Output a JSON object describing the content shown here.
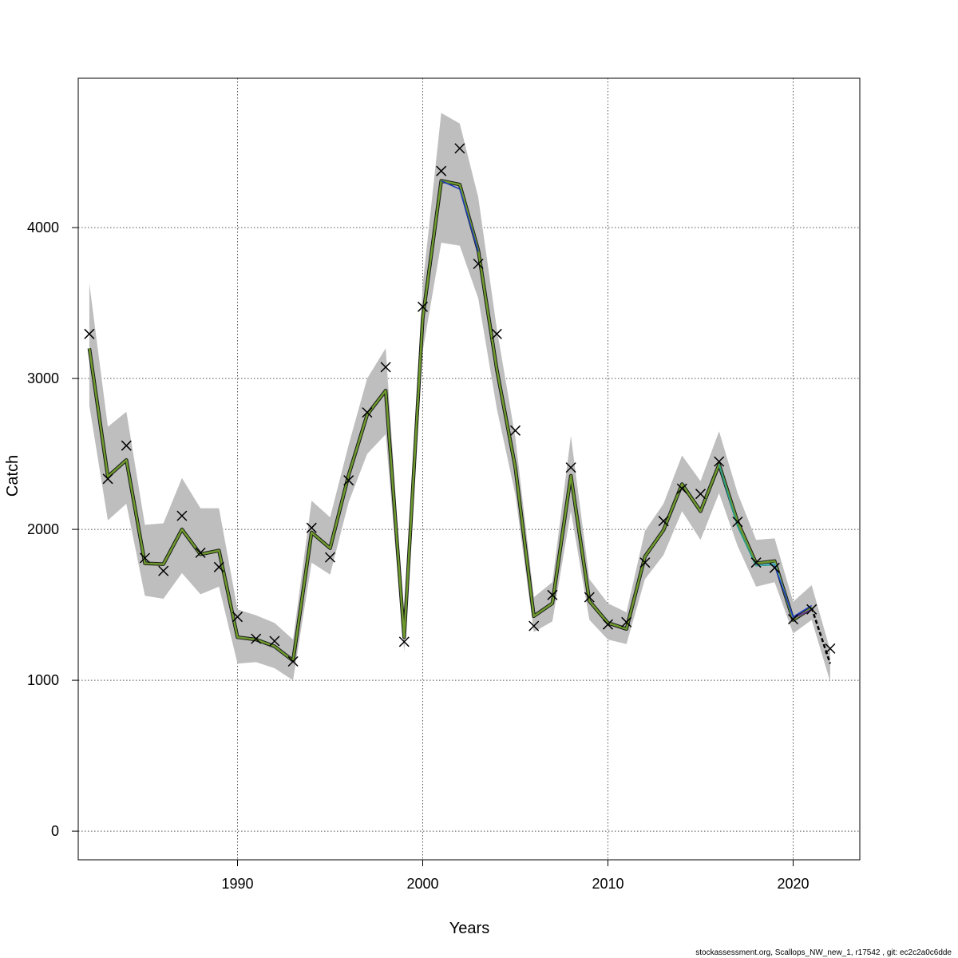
{
  "chart_data": {
    "type": "line",
    "xlabel": "Years",
    "ylabel": "Catch",
    "xlim": [
      1981.4,
      2023.6
    ],
    "ylim": [
      -190,
      4990
    ],
    "x_ticks": [
      1990,
      2000,
      2010,
      2020
    ],
    "x_tick_labels": [
      "1990",
      "2000",
      "2010",
      "2020"
    ],
    "y_ticks": [
      0,
      1000,
      2000,
      3000,
      4000
    ],
    "y_tick_labels": [
      "0",
      "1000",
      "2000",
      "3000",
      "4000"
    ],
    "grid": true,
    "colors": {
      "band": "#bebebe",
      "estimate_outline": "#1a1a1a",
      "estimate_fill": "#6e9a2e",
      "peel_blue": "#1f3fbf",
      "peel_teal": "#2a9a8a",
      "peel_cyan": "#5ab0c8",
      "peel_purple": "#6a3a9a",
      "forecast": "#000000",
      "observed_marker": "#000000"
    },
    "band": {
      "x": [
        1982,
        1983,
        1984,
        1985,
        1986,
        1987,
        1988,
        1989,
        1990,
        1991,
        1992,
        1993,
        1994,
        1995,
        1996,
        1997,
        1998,
        1999,
        2000,
        2001,
        2002,
        2003,
        2004,
        2005,
        2006,
        2007,
        2008,
        2009,
        2010,
        2011,
        2012,
        2013,
        2014,
        2015,
        2016,
        2017,
        2018,
        2019,
        2020,
        2021,
        2022
      ],
      "lower": [
        2820,
        2060,
        2170,
        1560,
        1540,
        1710,
        1570,
        1620,
        1110,
        1120,
        1080,
        1000,
        1780,
        1700,
        2180,
        2500,
        2630,
        1190,
        3180,
        3900,
        3880,
        3530,
        2800,
        2230,
        1320,
        1390,
        2120,
        1400,
        1270,
        1240,
        1670,
        1830,
        2120,
        1930,
        2240,
        1890,
        1620,
        1650,
        1310,
        1400,
        990
      ],
      "upper": [
        3630,
        2680,
        2780,
        2030,
        2040,
        2340,
        2140,
        2140,
        1470,
        1430,
        1380,
        1270,
        2190,
        2080,
        2560,
        3000,
        3200,
        1380,
        3620,
        4760,
        4690,
        4200,
        3330,
        2610,
        1550,
        1650,
        2620,
        1670,
        1510,
        1450,
        1990,
        2170,
        2490,
        2320,
        2650,
        2240,
        1930,
        1940,
        1520,
        1630,
        1200
      ]
    },
    "series": [
      {
        "x": [
          1982,
          1983,
          1984,
          1985,
          1986,
          1987,
          1988,
          1989,
          1990,
          1991,
          1992,
          1993,
          1994,
          1995,
          1996,
          1997,
          1998,
          1999,
          2000,
          2001,
          2002,
          2003,
          2004,
          2005,
          2006,
          2007,
          2008,
          2009,
          2010,
          2011,
          2012,
          2013,
          2014,
          2015,
          2016,
          2017,
          2018,
          2019,
          2020,
          2021
        ],
        "values": [
          3200,
          2350,
          2460,
          1775,
          1770,
          2000,
          1835,
          1860,
          1285,
          1270,
          1225,
          1130,
          1980,
          1875,
          2360,
          2760,
          2920,
          1285,
          3400,
          4310,
          4285,
          3850,
          3060,
          2410,
          1425,
          1510,
          2355,
          1525,
          1380,
          1340,
          1820,
          1995,
          2300,
          2120,
          2430,
          2050,
          1775,
          1790,
          1400,
          1480
        ]
      },
      {
        "x": [
          2001,
          2002,
          2003
        ],
        "values": [
          4310,
          4255,
          3840
        ]
      },
      {
        "x": [
          2016,
          2017,
          2018,
          2019
        ],
        "values": [
          2430,
          2020,
          1760,
          1765
        ]
      },
      {
        "x": [
          2018,
          2019,
          2020
        ],
        "values": [
          1760,
          1775,
          1415
        ]
      },
      {
        "x": [
          2019,
          2020,
          2021
        ],
        "values": [
          1760,
          1420,
          1495
        ]
      },
      {
        "x": [
          2020,
          2021
        ],
        "values": [
          1410,
          1470
        ]
      },
      {
        "x": [
          2021,
          2022
        ],
        "values": [
          1480,
          1110
        ]
      }
    ],
    "observed": {
      "x": [
        1982,
        1983,
        1984,
        1985,
        1986,
        1987,
        1988,
        1989,
        1990,
        1991,
        1992,
        1993,
        1994,
        1995,
        1996,
        1997,
        1998,
        1999,
        2000,
        2001,
        2002,
        2003,
        2004,
        2005,
        2006,
        2007,
        2008,
        2009,
        2010,
        2011,
        2012,
        2013,
        2014,
        2015,
        2016,
        2017,
        2018,
        2019,
        2020,
        2021,
        2022
      ],
      "values": [
        3295,
        2335,
        2555,
        1810,
        1725,
        2090,
        1845,
        1750,
        1420,
        1275,
        1260,
        1125,
        2010,
        1815,
        2325,
        2775,
        3075,
        1255,
        3475,
        4375,
        4525,
        3760,
        3295,
        2655,
        1360,
        1565,
        2410,
        1550,
        1370,
        1385,
        1780,
        2055,
        2270,
        2235,
        2450,
        2050,
        1780,
        1745,
        1405,
        1470,
        1210
      ]
    }
  },
  "footer": {
    "text": "stockassessment.org, Scallops_NW_new_1, r17542 , git: ec2c2a0c6dde"
  }
}
